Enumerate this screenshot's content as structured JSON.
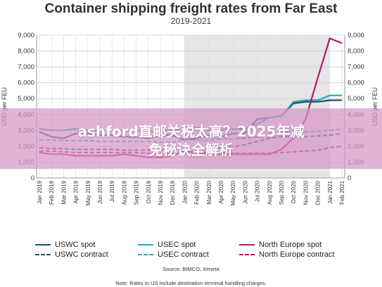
{
  "title": "Container shipping freight rates from Far East",
  "subtitle": "2019-2021",
  "banner": {
    "line1": "ashford直邮关税太高？2025年减",
    "line2": "免秘诀全解析"
  },
  "source": "Source: BIMCO, Xeneta",
  "note": "Note: Rates to US include destination terminal handling charges.",
  "colors": {
    "uswc": "#1d4f73",
    "usec": "#2aa6b5",
    "north_europe": "#b0186b",
    "shaded_period": "#e6e6e6"
  },
  "chart_data": {
    "type": "line",
    "ylabel": "USD per FEU",
    "ylim": [
      0,
      9000
    ],
    "yticks": [
      "0",
      "1,000",
      "2,000",
      "3,000",
      "4,000",
      "5,000",
      "6,000",
      "7,000",
      "8,000",
      "9,000"
    ],
    "x": [
      "Jan 2019",
      "Feb 2019",
      "Mar 2019",
      "Apr 2019",
      "May 2019",
      "Jun 2019",
      "Jul 2019",
      "Aug 2019",
      "Sep 2019",
      "Oct 2019",
      "Nov 2019",
      "Dec 2019",
      "Jan 2020",
      "Feb 2020",
      "Mar 2020",
      "Apr 2020",
      "May 2020",
      "Jun 2020",
      "Jul 2020",
      "Aug 2020",
      "Sep 2020",
      "Oct 2020",
      "Nov 2020",
      "Dec 2020",
      "Jan 2021",
      "Feb 2021"
    ],
    "shaded_range": [
      "Jan 2020",
      "Jan 2021"
    ],
    "grid": true,
    "dual_y_axis": true,
    "series": [
      {
        "name": "USWC spot",
        "key": "uswc",
        "style": "solid",
        "values": [
          2900,
          2600,
          2500,
          2800,
          2800,
          2700,
          2700,
          2600,
          2600,
          2500,
          2700,
          2700,
          2400,
          2500,
          2700,
          2600,
          2800,
          2800,
          3700,
          3800,
          3900,
          4700,
          4800,
          4800,
          4900,
          4900
        ]
      },
      {
        "name": "USWC contract",
        "key": "uswc",
        "style": "dashed",
        "values": [
          1900,
          1850,
          1850,
          1800,
          1800,
          1800,
          1800,
          1750,
          1750,
          1750,
          1750,
          1750,
          1850,
          1850,
          1850,
          1900,
          1950,
          2100,
          2300,
          2500,
          2600,
          2600,
          2600,
          2650,
          2700,
          2800
        ]
      },
      {
        "name": "USEC spot",
        "key": "usec",
        "style": "solid",
        "values": [
          3100,
          3000,
          3000,
          3100,
          3000,
          3000,
          3000,
          3000,
          3000,
          2900,
          3000,
          3000,
          3100,
          3200,
          3000,
          3000,
          3100,
          3100,
          3400,
          3800,
          3900,
          4800,
          4900,
          4900,
          5200,
          5200
        ]
      },
      {
        "name": "USEC contract",
        "key": "usec",
        "style": "dashed",
        "values": [
          2400,
          2400,
          2350,
          2350,
          2350,
          2300,
          2300,
          2300,
          2300,
          2300,
          2250,
          2250,
          2400,
          2400,
          2350,
          2450,
          2450,
          2500,
          2600,
          2800,
          2900,
          2900,
          2900,
          2950,
          3000,
          3100
        ]
      },
      {
        "name": "North Europe spot",
        "key": "north_europe",
        "style": "solid",
        "values": [
          1600,
          1500,
          1500,
          1400,
          1400,
          1400,
          1400,
          1500,
          1400,
          1300,
          1300,
          1400,
          1700,
          1600,
          1500,
          1500,
          1500,
          1500,
          1500,
          1500,
          1800,
          2500,
          3700,
          6300,
          8800,
          8500
        ]
      },
      {
        "name": "North Europe contract",
        "key": "north_europe",
        "style": "dashed",
        "values": [
          1700,
          1700,
          1650,
          1600,
          1600,
          1600,
          1600,
          1600,
          1600,
          1550,
          1550,
          1550,
          1600,
          1650,
          1600,
          1600,
          1550,
          1550,
          1550,
          1550,
          1600,
          1650,
          1700,
          1750,
          1900,
          2000
        ]
      }
    ]
  },
  "legend": [
    {
      "label": "USWC spot",
      "key": "uswc",
      "style": "solid"
    },
    {
      "label": "USEC spot",
      "key": "usec",
      "style": "solid"
    },
    {
      "label": "North Europe spot",
      "key": "north_europe",
      "style": "solid"
    },
    {
      "label": "USWC contract",
      "key": "uswc",
      "style": "dashed"
    },
    {
      "label": "USEC contract",
      "key": "usec",
      "style": "dashed"
    },
    {
      "label": "North Europe contract",
      "key": "north_europe",
      "style": "dashed"
    }
  ]
}
